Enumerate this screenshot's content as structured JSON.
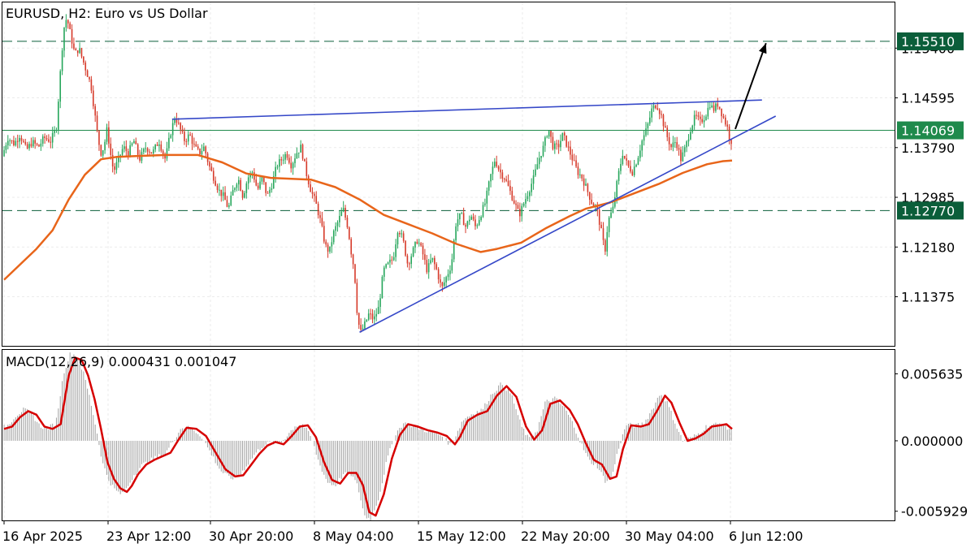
{
  "chart_data": [
    {
      "type": "candlestick",
      "title": "EURUSD, H2:  Euro vs US Dollar",
      "ylim": [
        1.1058,
        1.1614
      ],
      "y_ticks": [
        "1.15400",
        "1.14595",
        "1.13790",
        "1.12985",
        "1.12180",
        "1.11375"
      ],
      "x_ticks": [
        "16 Apr 2025",
        "23 Apr 12:00",
        "30 Apr 20:00",
        "8 May 04:00",
        "15 May 12:00",
        "22 May 20:00",
        "30 May 04:00",
        "6 Jun 12:00"
      ],
      "price_labels": [
        {
          "value": 1.1551,
          "text": "1.15510",
          "color": "#0b5e3a",
          "style": "dashed"
        },
        {
          "value": 1.14069,
          "text": "1.14069",
          "color": "#1f8a4c",
          "style": "solid"
        },
        {
          "value": 1.1277,
          "text": "1.12770",
          "color": "#0b5e3a",
          "style": "dashed"
        }
      ],
      "colors": {
        "bull": "#26a65b",
        "bear": "#d63a2a",
        "ma": "#e8651a",
        "trendline": "#3548c8",
        "arrow": "#000000"
      },
      "price_path": [
        [
          0,
          1.1365
        ],
        [
          7,
          1.1395
        ],
        [
          15,
          1.1385
        ],
        [
          22,
          1.14
        ],
        [
          30,
          1.1375
        ],
        [
          37,
          1.1388
        ],
        [
          45,
          1.138
        ],
        [
          52,
          1.1395
        ],
        [
          60,
          1.139
        ],
        [
          67,
          1.141
        ],
        [
          72,
          1.15
        ],
        [
          76,
          1.157
        ],
        [
          80,
          1.159
        ],
        [
          85,
          1.156
        ],
        [
          90,
          1.153
        ],
        [
          95,
          1.154
        ],
        [
          100,
          1.152
        ],
        [
          105,
          1.15
        ],
        [
          110,
          1.148
        ],
        [
          114,
          1.144
        ],
        [
          118,
          1.14
        ],
        [
          122,
          1.137
        ],
        [
          126,
          1.138
        ],
        [
          130,
          1.141
        ],
        [
          134,
          1.137
        ],
        [
          138,
          1.134
        ],
        [
          144,
          1.136
        ],
        [
          150,
          1.138
        ],
        [
          156,
          1.137
        ],
        [
          163,
          1.139
        ],
        [
          170,
          1.136
        ],
        [
          178,
          1.138
        ],
        [
          186,
          1.137
        ],
        [
          194,
          1.139
        ],
        [
          202,
          1.136
        ],
        [
          208,
          1.14
        ],
        [
          214,
          1.143
        ],
        [
          220,
          1.141
        ],
        [
          226,
          1.139
        ],
        [
          232,
          1.14
        ],
        [
          238,
          1.138
        ],
        [
          244,
          1.137
        ],
        [
          250,
          1.138
        ],
        [
          256,
          1.135
        ],
        [
          262,
          1.133
        ],
        [
          268,
          1.131
        ],
        [
          274,
          1.13
        ],
        [
          280,
          1.128
        ],
        [
          286,
          1.131
        ],
        [
          292,
          1.133
        ],
        [
          298,
          1.13
        ],
        [
          304,
          1.133
        ],
        [
          310,
          1.134
        ],
        [
          316,
          1.131
        ],
        [
          322,
          1.133
        ],
        [
          328,
          1.13
        ],
        [
          334,
          1.132
        ],
        [
          340,
          1.135
        ],
        [
          346,
          1.136
        ],
        [
          352,
          1.137
        ],
        [
          358,
          1.135
        ],
        [
          364,
          1.137
        ],
        [
          370,
          1.138
        ],
        [
          376,
          1.134
        ],
        [
          382,
          1.131
        ],
        [
          388,
          1.129
        ],
        [
          394,
          1.126
        ],
        [
          400,
          1.122
        ],
        [
          405,
          1.121
        ],
        [
          410,
          1.124
        ],
        [
          416,
          1.126
        ],
        [
          422,
          1.128
        ],
        [
          428,
          1.125
        ],
        [
          432,
          1.121
        ],
        [
          436,
          1.118
        ],
        [
          440,
          1.11
        ],
        [
          444,
          1.108
        ],
        [
          448,
          1.109
        ],
        [
          454,
          1.111
        ],
        [
          460,
          1.11
        ],
        [
          466,
          1.112
        ],
        [
          472,
          1.118
        ],
        [
          478,
          1.119
        ],
        [
          484,
          1.12
        ],
        [
          490,
          1.125
        ],
        [
          496,
          1.123
        ],
        [
          502,
          1.119
        ],
        [
          508,
          1.121
        ],
        [
          514,
          1.123
        ],
        [
          520,
          1.121
        ],
        [
          526,
          1.118
        ],
        [
          532,
          1.12
        ],
        [
          538,
          1.118
        ],
        [
          544,
          1.115
        ],
        [
          550,
          1.117
        ],
        [
          556,
          1.119
        ],
        [
          562,
          1.126
        ],
        [
          568,
          1.127
        ],
        [
          574,
          1.125
        ],
        [
          580,
          1.127
        ],
        [
          586,
          1.125
        ],
        [
          592,
          1.127
        ],
        [
          598,
          1.129
        ],
        [
          604,
          1.133
        ],
        [
          610,
          1.136
        ],
        [
          616,
          1.134
        ],
        [
          622,
          1.133
        ],
        [
          628,
          1.131
        ],
        [
          634,
          1.129
        ],
        [
          640,
          1.127
        ],
        [
          646,
          1.129
        ],
        [
          652,
          1.131
        ],
        [
          658,
          1.133
        ],
        [
          664,
          1.136
        ],
        [
          670,
          1.138
        ],
        [
          676,
          1.141
        ],
        [
          682,
          1.138
        ],
        [
          688,
          1.138
        ],
        [
          694,
          1.14
        ],
        [
          700,
          1.138
        ],
        [
          706,
          1.136
        ],
        [
          712,
          1.134
        ],
        [
          718,
          1.133
        ],
        [
          724,
          1.131
        ],
        [
          730,
          1.129
        ],
        [
          736,
          1.128
        ],
        [
          742,
          1.124
        ],
        [
          746,
          1.121
        ],
        [
          750,
          1.126
        ],
        [
          756,
          1.128
        ],
        [
          762,
          1.133
        ],
        [
          768,
          1.137
        ],
        [
          774,
          1.135
        ],
        [
          780,
          1.134
        ],
        [
          786,
          1.136
        ],
        [
          792,
          1.139
        ],
        [
          798,
          1.141
        ],
        [
          804,
          1.144
        ],
        [
          810,
          1.145
        ],
        [
          816,
          1.143
        ],
        [
          822,
          1.14
        ],
        [
          828,
          1.138
        ],
        [
          834,
          1.139
        ],
        [
          840,
          1.136
        ],
        [
          846,
          1.138
        ],
        [
          852,
          1.141
        ],
        [
          858,
          1.143
        ],
        [
          864,
          1.142
        ],
        [
          870,
          1.143
        ],
        [
          876,
          1.145
        ],
        [
          880,
          1.144
        ],
        [
          886,
          1.145
        ],
        [
          892,
          1.143
        ],
        [
          898,
          1.141
        ],
        [
          901,
          1.139
        ]
      ],
      "moving_average": [
        [
          0,
          1.1165
        ],
        [
          20,
          1.119
        ],
        [
          40,
          1.1215
        ],
        [
          60,
          1.1245
        ],
        [
          80,
          1.1295
        ],
        [
          100,
          1.1335
        ],
        [
          120,
          1.136
        ],
        [
          140,
          1.1364
        ],
        [
          160,
          1.1365
        ],
        [
          200,
          1.1367
        ],
        [
          240,
          1.1367
        ],
        [
          270,
          1.1355
        ],
        [
          300,
          1.1337
        ],
        [
          330,
          1.133
        ],
        [
          380,
          1.1327
        ],
        [
          410,
          1.1315
        ],
        [
          440,
          1.1295
        ],
        [
          470,
          1.127
        ],
        [
          500,
          1.1255
        ],
        [
          530,
          1.124
        ],
        [
          560,
          1.1223
        ],
        [
          590,
          1.121
        ],
        [
          610,
          1.1215
        ],
        [
          640,
          1.1225
        ],
        [
          670,
          1.1248
        ],
        [
          700,
          1.1268
        ],
        [
          720,
          1.128
        ],
        [
          750,
          1.129
        ],
        [
          780,
          1.1305
        ],
        [
          810,
          1.132
        ],
        [
          840,
          1.1338
        ],
        [
          870,
          1.1352
        ],
        [
          890,
          1.1357
        ],
        [
          901,
          1.1358
        ]
      ],
      "trendlines": [
        {
          "from": [
            208,
            1.1425
          ],
          "to": [
            938,
            1.1456
          ]
        },
        {
          "from": [
            440,
            1.108
          ],
          "to": [
            955,
            1.143
          ]
        }
      ],
      "arrow": {
        "from": [
          905,
          1.1409
        ],
        "to": [
          943,
          1.1548
        ]
      }
    },
    {
      "type": "histogram_line",
      "title": "MACD(12,26,9) 0.000431 0.001047",
      "ylim": [
        -0.0067,
        0.00765
      ],
      "y_ticks": [
        "0.005635",
        "0.000000",
        "-0.005929"
      ],
      "colors": {
        "histogram": "#a0a0a0",
        "signal": "#d60000"
      },
      "signal_path": [
        [
          0,
          0.001
        ],
        [
          10,
          0.0012
        ],
        [
          20,
          0.002
        ],
        [
          30,
          0.0025
        ],
        [
          40,
          0.0022
        ],
        [
          50,
          0.0012
        ],
        [
          60,
          0.001
        ],
        [
          70,
          0.0014
        ],
        [
          80,
          0.0055
        ],
        [
          88,
          0.007
        ],
        [
          96,
          0.0068
        ],
        [
          104,
          0.0055
        ],
        [
          112,
          0.0035
        ],
        [
          120,
          0.001
        ],
        [
          128,
          -0.0018
        ],
        [
          136,
          -0.0032
        ],
        [
          144,
          -0.004
        ],
        [
          152,
          -0.0043
        ],
        [
          158,
          -0.0038
        ],
        [
          166,
          -0.0028
        ],
        [
          176,
          -0.002
        ],
        [
          186,
          -0.0016
        ],
        [
          196,
          -0.0013
        ],
        [
          206,
          -0.001
        ],
        [
          216,
          0.0001
        ],
        [
          226,
          0.0011
        ],
        [
          238,
          0.001
        ],
        [
          250,
          0.0004
        ],
        [
          262,
          -0.001
        ],
        [
          274,
          -0.0024
        ],
        [
          286,
          -0.003
        ],
        [
          296,
          -0.0029
        ],
        [
          306,
          -0.002
        ],
        [
          316,
          -0.0011
        ],
        [
          326,
          -0.0004
        ],
        [
          336,
          -0.0001
        ],
        [
          346,
          -0.0003
        ],
        [
          356,
          0.0004
        ],
        [
          366,
          0.0012
        ],
        [
          376,
          0.0013
        ],
        [
          386,
          0.0003
        ],
        [
          396,
          -0.0018
        ],
        [
          406,
          -0.0033
        ],
        [
          416,
          -0.0036
        ],
        [
          426,
          -0.0027
        ],
        [
          436,
          -0.0027
        ],
        [
          444,
          -0.0037
        ],
        [
          452,
          -0.006
        ],
        [
          460,
          -0.0063
        ],
        [
          470,
          -0.0045
        ],
        [
          480,
          -0.0015
        ],
        [
          490,
          0.0005
        ],
        [
          500,
          0.0014
        ],
        [
          512,
          0.0012
        ],
        [
          524,
          0.0009
        ],
        [
          536,
          0.0007
        ],
        [
          548,
          0.0004
        ],
        [
          558,
          -0.0003
        ],
        [
          564,
          0.0003
        ],
        [
          574,
          0.0017
        ],
        [
          586,
          0.0022
        ],
        [
          598,
          0.0025
        ],
        [
          610,
          0.0038
        ],
        [
          622,
          0.0046
        ],
        [
          634,
          0.0037
        ],
        [
          646,
          0.0012
        ],
        [
          656,
          0.0001
        ],
        [
          666,
          0.0009
        ],
        [
          676,
          0.0031
        ],
        [
          688,
          0.0034
        ],
        [
          700,
          0.0026
        ],
        [
          710,
          0.0014
        ],
        [
          720,
          -0.0002
        ],
        [
          730,
          -0.0016
        ],
        [
          740,
          -0.002
        ],
        [
          750,
          -0.0032
        ],
        [
          758,
          -0.003
        ],
        [
          766,
          -0.0007
        ],
        [
          776,
          0.0013
        ],
        [
          788,
          0.0012
        ],
        [
          798,
          0.0014
        ],
        [
          808,
          0.0025
        ],
        [
          818,
          0.0038
        ],
        [
          826,
          0.0032
        ],
        [
          836,
          0.0015
        ],
        [
          846,
          0.0
        ],
        [
          856,
          0.0002
        ],
        [
          866,
          0.0006
        ],
        [
          876,
          0.0012
        ],
        [
          886,
          0.0013
        ],
        [
          894,
          0.0014
        ],
        [
          901,
          0.001
        ]
      ]
    }
  ]
}
